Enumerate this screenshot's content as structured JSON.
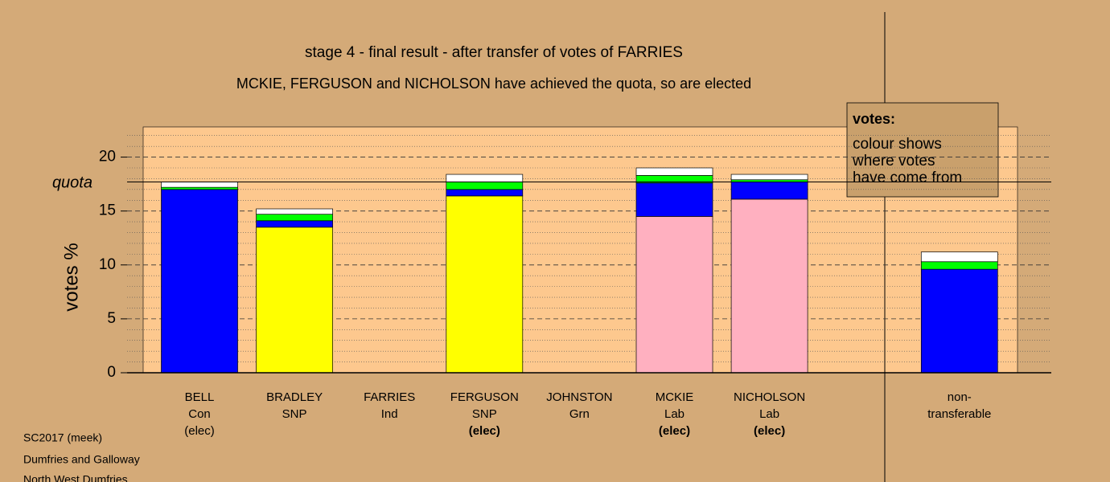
{
  "chart_data": {
    "type": "stacked_bar",
    "title": "stage 4 - final result - after transfer of votes of FARRIES",
    "subtitle": "MCKIE, FERGUSON and NICHOLSON have achieved the quota, so are elected",
    "y_label": "votes %",
    "categories": [
      [
        "BELL",
        "Con",
        "(elec)"
      ],
      [
        "BRADLEY",
        "SNP"
      ],
      [
        "FARRIES",
        "Ind"
      ],
      [
        "FERGUSON",
        "SNP",
        "(elec)"
      ],
      [
        "JOHNSTON",
        "Grn"
      ],
      [
        "MCKIE",
        "Lab",
        "(elec)"
      ],
      [
        "NICHOLSON",
        "Lab",
        "(elec)"
      ],
      [
        "non-",
        "transferable"
      ]
    ],
    "bold_third_line": [
      false,
      false,
      false,
      true,
      false,
      true,
      true,
      false
    ],
    "series": [
      {
        "colors": [
          "#0000ff",
          "#ffff00",
          "#ffff00",
          "#ffff00",
          "#00ff00",
          "#ffb0c0",
          "#ffb0c0",
          "#0000ff"
        ],
        "values": [
          17.0,
          13.5,
          0,
          16.4,
          0,
          14.5,
          16.1,
          9.6
        ]
      },
      {
        "colors": [
          "#0000ff",
          "#0000ff",
          "#0000ff",
          "#0000ff",
          "#0000ff",
          "#0000ff",
          "#0000ff",
          "#0000ff"
        ],
        "values": [
          0,
          0.6,
          0,
          0.6,
          0,
          3.1,
          1.6,
          0
        ]
      },
      {
        "colors": [
          "#00ff00",
          "#00ff00",
          "#00ff00",
          "#00ff00",
          "#00ff00",
          "#00ff00",
          "#00ff00",
          "#00ff00"
        ],
        "values": [
          0.2,
          0.6,
          0,
          0.7,
          0,
          0.7,
          0.2,
          0.7
        ]
      },
      {
        "colors": [
          "#ffffff",
          "#ffffff",
          "#ffffff",
          "#ffffff",
          "#ffffff",
          "#ffffff",
          "#ffffff",
          "#ffffff"
        ],
        "values": [
          0.5,
          0.5,
          0,
          0.7,
          0,
          0.7,
          0.5,
          0.9
        ]
      }
    ],
    "quota": {
      "label": "quota",
      "value": 17.7
    },
    "ylim": [
      0,
      22.8
    ],
    "yticks": [
      0,
      5,
      10,
      15,
      20
    ],
    "grid": true,
    "minor_grid_step": 1,
    "legend_box": {
      "title": "votes:",
      "lines": [
        "colour shows",
        "where votes",
        "have come from"
      ]
    },
    "footer": [
      "SC2017 (meek)",
      "Dumfries and Galloway",
      "North West Dumfries"
    ]
  }
}
